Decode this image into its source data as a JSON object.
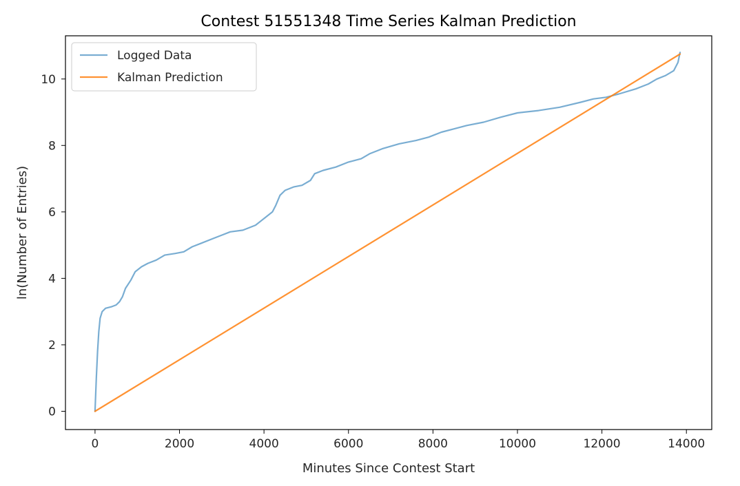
{
  "chart_data": {
    "type": "line",
    "title": "Contest 51551348 Time Series Kalman Prediction",
    "xlabel": "Minutes Since Contest Start",
    "ylabel": "ln(Number of Entries)",
    "xlim": [
      -700,
      14600
    ],
    "ylim": [
      -0.55,
      11.3
    ],
    "xticks": [
      0,
      2000,
      4000,
      6000,
      8000,
      10000,
      12000,
      14000
    ],
    "yticks": [
      0,
      2,
      4,
      6,
      8,
      10
    ],
    "grid": false,
    "legend_position": "top-left",
    "series": [
      {
        "name": "Logged Data",
        "color": "#1f77b4",
        "opacity": 0.6,
        "points": [
          [
            0,
            0.0
          ],
          [
            30,
            1.0
          ],
          [
            60,
            1.8
          ],
          [
            90,
            2.4
          ],
          [
            120,
            2.8
          ],
          [
            170,
            3.0
          ],
          [
            250,
            3.1
          ],
          [
            400,
            3.15
          ],
          [
            500,
            3.2
          ],
          [
            580,
            3.3
          ],
          [
            650,
            3.45
          ],
          [
            720,
            3.7
          ],
          [
            850,
            3.95
          ],
          [
            950,
            4.2
          ],
          [
            1100,
            4.35
          ],
          [
            1250,
            4.45
          ],
          [
            1450,
            4.55
          ],
          [
            1650,
            4.7
          ],
          [
            1900,
            4.75
          ],
          [
            2100,
            4.8
          ],
          [
            2300,
            4.95
          ],
          [
            2500,
            5.05
          ],
          [
            2800,
            5.2
          ],
          [
            3000,
            5.3
          ],
          [
            3200,
            5.4
          ],
          [
            3500,
            5.45
          ],
          [
            3800,
            5.6
          ],
          [
            4000,
            5.8
          ],
          [
            4200,
            6.0
          ],
          [
            4280,
            6.2
          ],
          [
            4380,
            6.5
          ],
          [
            4500,
            6.65
          ],
          [
            4700,
            6.75
          ],
          [
            4900,
            6.8
          ],
          [
            5100,
            6.95
          ],
          [
            5200,
            7.15
          ],
          [
            5400,
            7.25
          ],
          [
            5700,
            7.35
          ],
          [
            6000,
            7.5
          ],
          [
            6300,
            7.6
          ],
          [
            6500,
            7.75
          ],
          [
            6800,
            7.9
          ],
          [
            7200,
            8.05
          ],
          [
            7600,
            8.15
          ],
          [
            7900,
            8.25
          ],
          [
            8200,
            8.4
          ],
          [
            8500,
            8.5
          ],
          [
            8800,
            8.6
          ],
          [
            9200,
            8.7
          ],
          [
            9600,
            8.85
          ],
          [
            10000,
            8.98
          ],
          [
            10500,
            9.05
          ],
          [
            11000,
            9.15
          ],
          [
            11500,
            9.3
          ],
          [
            11800,
            9.4
          ],
          [
            12100,
            9.45
          ],
          [
            12400,
            9.55
          ],
          [
            12800,
            9.7
          ],
          [
            13100,
            9.85
          ],
          [
            13300,
            10.0
          ],
          [
            13500,
            10.1
          ],
          [
            13700,
            10.25
          ],
          [
            13800,
            10.5
          ],
          [
            13850,
            10.8
          ]
        ]
      },
      {
        "name": "Kalman Prediction",
        "color": "#ff7f0e",
        "opacity": 0.85,
        "points": [
          [
            0,
            0.0
          ],
          [
            13850,
            10.75
          ]
        ]
      }
    ]
  }
}
